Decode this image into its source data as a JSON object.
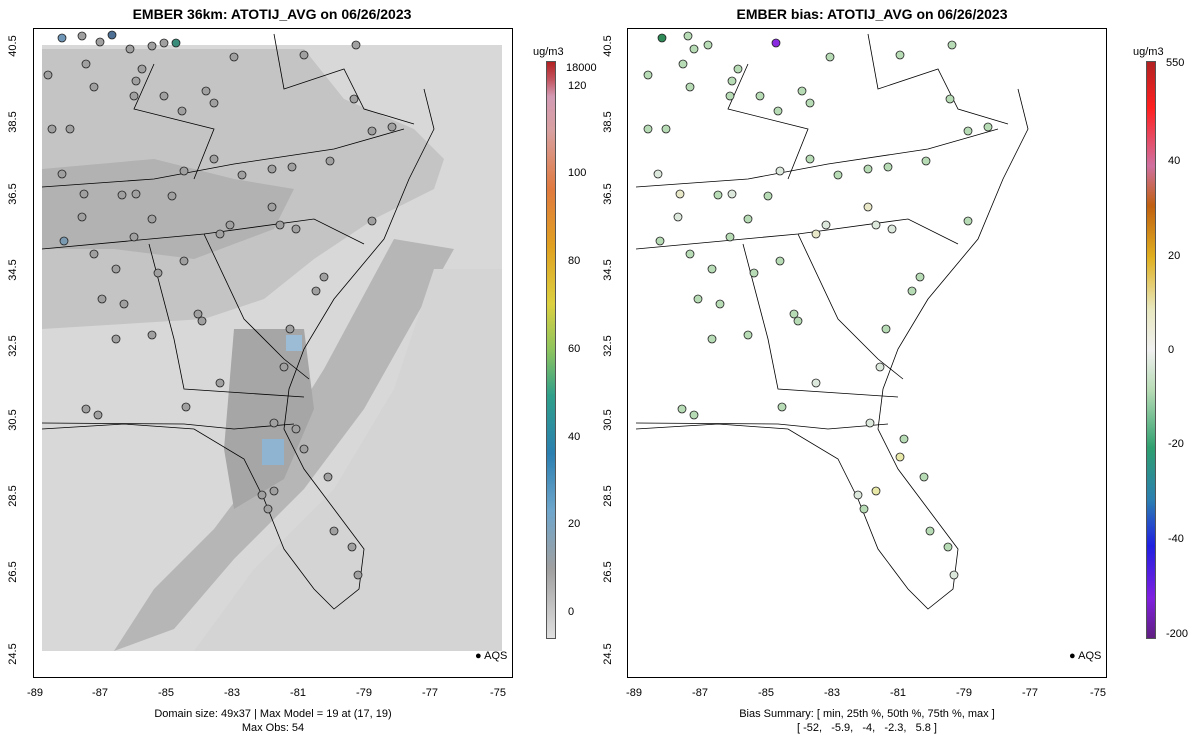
{
  "left": {
    "title": "EMBER 36km: ATOTIJ_AVG on 06/26/2023",
    "caption_line1": "Domain size: 49x37 | Max Model = 19 at (17, 19)",
    "caption_line2": "Max Obs: 54",
    "colorbar_unit": "ug/m3",
    "colorbar_ticks": [
      "18000",
      "120",
      "100",
      "80",
      "60",
      "40",
      "20",
      "0"
    ],
    "legend": "AQS"
  },
  "right": {
    "title": "EMBER bias: ATOTIJ_AVG on 06/26/2023",
    "caption_line1": "Bias Summary: [ min, 25th %, 50th %, 75th %, max ]",
    "caption_line2": "[ -52,   -5.9,   -4,   -2.3,   5.8 ]",
    "colorbar_unit": "ug/m3",
    "colorbar_ticks": [
      "550",
      "40",
      "20",
      "0",
      "-20",
      "-40",
      "-200"
    ],
    "legend": "AQS"
  },
  "axes": {
    "y_ticks": [
      "40.5",
      "38.5",
      "36.5",
      "34.5",
      "32.5",
      "30.5",
      "28.5",
      "26.5",
      "24.5"
    ],
    "x_ticks": [
      "-89",
      "-87",
      "-85",
      "-83",
      "-81",
      "-79",
      "-77",
      "-75"
    ]
  },
  "colors": {
    "grid_light": "#d8d8d8",
    "grid_mid": "#c2c2c2",
    "grid_dark": "#a8a8a8",
    "grid_blue": "#8fb4d2",
    "site_gray": "#a0a0a0",
    "bias_green": "#b7dcb5"
  }
}
